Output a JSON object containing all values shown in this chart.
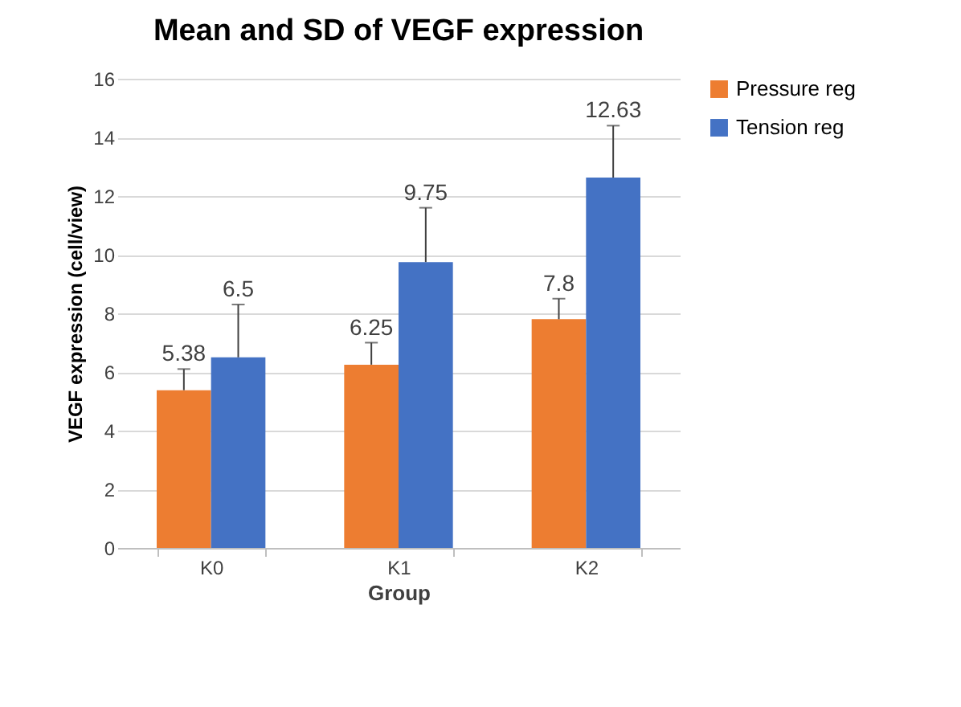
{
  "chart_data": {
    "type": "bar",
    "title": "Mean and SD of VEGF expression",
    "xlabel": "Group",
    "ylabel": "VEGF expression (cell/view)",
    "categories": [
      "K0",
      "K1",
      "K2"
    ],
    "series": [
      {
        "name": "Pressure reg",
        "color": "#ed7d31",
        "values": [
          5.38,
          6.25,
          7.8
        ],
        "errors": [
          [
            5.38,
            6.1
          ],
          [
            6.25,
            7.0
          ],
          [
            7.8,
            8.5
          ]
        ]
      },
      {
        "name": "Tension reg",
        "color": "#4472c4",
        "values": [
          6.5,
          9.75,
          12.63
        ],
        "errors": [
          [
            6.5,
            8.3
          ],
          [
            9.75,
            11.6
          ],
          [
            12.63,
            14.4
          ]
        ]
      }
    ],
    "ylim": [
      0,
      16
    ],
    "yticks": [
      0,
      2,
      4,
      6,
      8,
      10,
      12,
      14,
      16
    ],
    "grid": "y",
    "legend": "right",
    "data_labels": true
  }
}
